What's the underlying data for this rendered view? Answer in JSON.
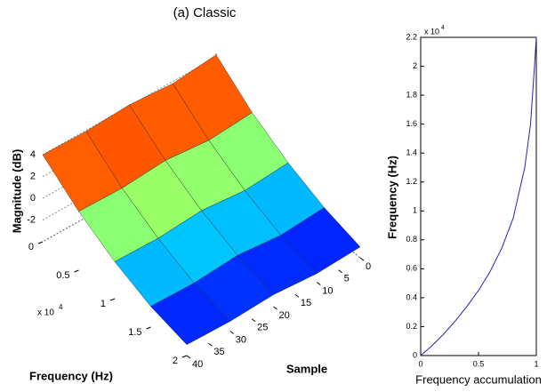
{
  "chart_data": [
    {
      "type": "surface3d",
      "title": "(a) Classic",
      "x_label": "Frequency (Hz)",
      "y_label": "Sample",
      "z_label": "Magnitude (dB)",
      "x_scale_label": "x 10",
      "x_scale_exponent": "4",
      "x": [
        0,
        0.5,
        1,
        1.5,
        2
      ],
      "y": [
        0,
        10,
        20,
        30,
        40
      ],
      "z": [
        [
          4.2,
          3.8,
          4.1,
          3.9,
          4.0
        ],
        [
          1.5,
          1.2,
          1.6,
          1.3,
          1.4
        ],
        [
          -0.5,
          -0.8,
          -0.4,
          -0.7,
          -0.6
        ],
        [
          -2.0,
          -2.3,
          -1.9,
          -2.2,
          -2.1
        ],
        [
          -3.0,
          -3.2,
          -2.9,
          -3.1,
          -3.0
        ]
      ],
      "xlim": [
        0,
        2
      ],
      "ylim": [
        0,
        40
      ],
      "zlim": [
        -4,
        4.5
      ],
      "xticks": [
        0,
        0.5,
        1,
        1.5,
        2
      ],
      "yticks": [
        0,
        5,
        10,
        15,
        20,
        25,
        30,
        35,
        40
      ],
      "zticks": [
        -2,
        0,
        2,
        4
      ],
      "colormap": "jet"
    },
    {
      "type": "line",
      "x_label": "Frequency accumulation",
      "y_label": "Frequency (Hz)",
      "y_scale_label": "x 10",
      "y_scale_exponent": "4",
      "x": [
        0,
        0.1,
        0.2,
        0.3,
        0.4,
        0.5,
        0.6,
        0.7,
        0.8,
        0.9,
        0.95,
        0.98,
        1
      ],
      "series": [
        {
          "color": "#2020c0",
          "values": [
            0,
            0.07,
            0.15,
            0.24,
            0.34,
            0.45,
            0.58,
            0.74,
            0.95,
            1.3,
            1.6,
            1.95,
            2.2
          ]
        }
      ],
      "xlim": [
        0,
        1
      ],
      "ylim": [
        0,
        2.2
      ],
      "xticks": [
        0,
        0.5,
        1
      ],
      "yticks": [
        0,
        0.2,
        0.4,
        0.6,
        0.8,
        1,
        1.2,
        1.4,
        1.6,
        1.8,
        2,
        2.2
      ]
    }
  ]
}
